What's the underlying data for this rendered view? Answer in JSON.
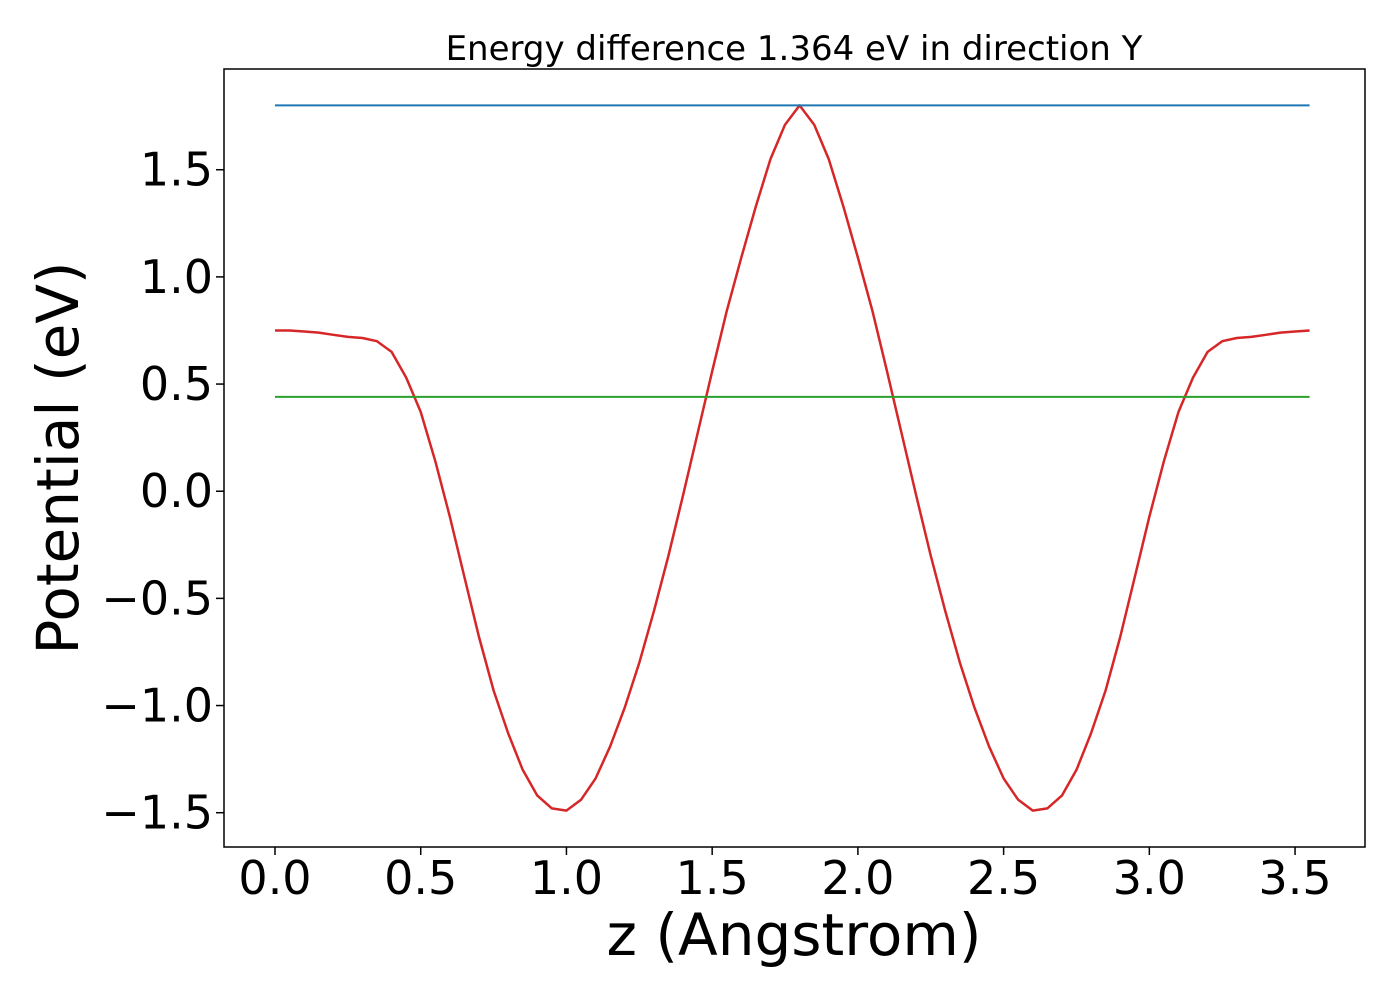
{
  "chart_data": {
    "type": "line",
    "title": "Energy difference 1.364 eV in direction Y",
    "xlabel": "z (Angstrom)",
    "ylabel": "Potential (eV)",
    "xlim": [
      -0.175,
      3.74
    ],
    "ylim": [
      -1.66,
      1.97
    ],
    "xticks": [
      0.0,
      0.5,
      1.0,
      1.5,
      2.0,
      2.5,
      3.0,
      3.5
    ],
    "xtick_labels": [
      "0.0",
      "0.5",
      "1.0",
      "1.5",
      "2.0",
      "2.5",
      "3.0",
      "3.5"
    ],
    "yticks": [
      1.5,
      1.0,
      0.5,
      0.0,
      -0.5,
      -1.0,
      -1.5
    ],
    "ytick_labels": [
      "1.5",
      "1.0",
      "0.5",
      "0.0",
      "−0.5",
      "−1.0",
      "−1.5"
    ],
    "grid": false,
    "series": [
      {
        "color": "#d62728",
        "x": [
          0.0,
          0.05,
          0.1,
          0.15,
          0.2,
          0.25,
          0.3,
          0.35,
          0.4,
          0.45,
          0.5,
          0.55,
          0.6,
          0.65,
          0.7,
          0.75,
          0.8,
          0.85,
          0.9,
          0.95,
          1.0,
          1.05,
          1.1,
          1.15,
          1.2,
          1.25,
          1.3,
          1.35,
          1.4,
          1.45,
          1.5,
          1.55,
          1.6,
          1.65,
          1.7,
          1.75,
          1.8,
          1.85,
          1.9,
          1.95,
          2.0,
          2.05,
          2.1,
          2.15,
          2.2,
          2.25,
          2.3,
          2.35,
          2.4,
          2.45,
          2.5,
          2.55,
          2.6,
          2.65,
          2.7,
          2.75,
          2.8,
          2.85,
          2.9,
          2.95,
          3.0,
          3.05,
          3.1,
          3.15,
          3.2,
          3.25,
          3.3,
          3.35,
          3.4,
          3.45,
          3.5,
          3.55
        ],
        "y": [
          0.75,
          0.75,
          0.745,
          0.74,
          0.73,
          0.72,
          0.715,
          0.7,
          0.65,
          0.53,
          0.37,
          0.14,
          -0.12,
          -0.4,
          -0.68,
          -0.93,
          -1.13,
          -1.3,
          -1.42,
          -1.48,
          -1.49,
          -1.44,
          -1.34,
          -1.19,
          -1.01,
          -0.8,
          -0.56,
          -0.3,
          -0.02,
          0.27,
          0.56,
          0.84,
          1.09,
          1.33,
          1.55,
          1.71,
          1.8,
          1.71,
          1.55,
          1.33,
          1.09,
          0.84,
          0.56,
          0.27,
          -0.02,
          -0.3,
          -0.56,
          -0.8,
          -1.01,
          -1.19,
          -1.34,
          -1.44,
          -1.49,
          -1.48,
          -1.42,
          -1.3,
          -1.13,
          -0.93,
          -0.68,
          -0.4,
          -0.12,
          0.14,
          0.37,
          0.53,
          0.65,
          0.7,
          0.715,
          0.72,
          0.73,
          0.74,
          0.745,
          0.75
        ]
      },
      {
        "color": "#1f77b4",
        "x": [
          0.0,
          3.55
        ],
        "y": [
          1.8,
          1.8
        ]
      },
      {
        "color": "#2ca02c",
        "x": [
          0.0,
          3.55
        ],
        "y": [
          0.44,
          0.44
        ]
      }
    ]
  }
}
